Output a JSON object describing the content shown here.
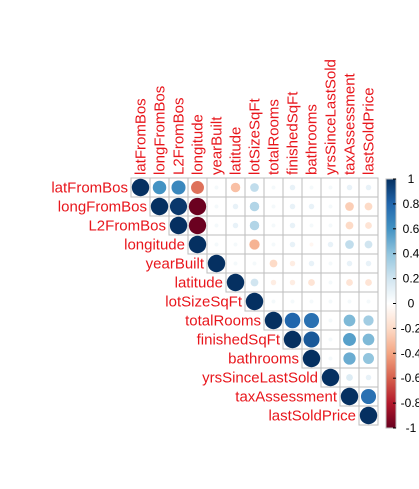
{
  "chart_data": {
    "type": "heatmap",
    "variables": [
      "latFromBos",
      "longFromBos",
      "L2FromBos",
      "longitude",
      "yearBuilt",
      "latitude",
      "lotSizeSqFt",
      "totalRooms",
      "finishedSqFt",
      "bathrooms",
      "yrsSinceLastSold",
      "taxAssessment",
      "lastSoldPrice"
    ],
    "shape": "upper-triangle circles",
    "matrix": [
      [
        1,
        0.6,
        0.65,
        -0.55,
        0.05,
        -0.3,
        0.25,
        0.05,
        0.1,
        0.05,
        0.05,
        0.1,
        0.1
      ],
      [
        null,
        1,
        0.97,
        -0.99,
        0.05,
        0.1,
        0.3,
        0.05,
        0.1,
        0.1,
        0.05,
        -0.25,
        -0.2
      ],
      [
        null,
        null,
        1,
        -0.99,
        0.05,
        0.1,
        0.3,
        0.05,
        0.1,
        0.05,
        0.05,
        -0.2,
        -0.15
      ],
      [
        null,
        null,
        null,
        1,
        0.05,
        0.05,
        -0.35,
        0.05,
        0.1,
        -0.05,
        0.1,
        0.25,
        0.2
      ],
      [
        null,
        null,
        null,
        null,
        1,
        0.05,
        0.05,
        -0.2,
        -0.1,
        0.1,
        0.05,
        0.1,
        0.1
      ],
      [
        null,
        null,
        null,
        null,
        null,
        1,
        0.2,
        -0.1,
        -0.1,
        -0.15,
        0.05,
        -0.15,
        -0.15
      ],
      [
        null,
        null,
        null,
        null,
        null,
        null,
        1,
        0.05,
        0.05,
        0.05,
        0.05,
        0.05,
        0.05
      ],
      [
        null,
        null,
        null,
        null,
        null,
        null,
        null,
        1,
        0.8,
        0.75,
        0.05,
        0.45,
        0.35
      ],
      [
        null,
        null,
        null,
        null,
        null,
        null,
        null,
        null,
        1,
        0.85,
        0.05,
        0.55,
        0.45
      ],
      [
        null,
        null,
        null,
        null,
        null,
        null,
        null,
        null,
        null,
        1,
        0.05,
        0.5,
        0.4
      ],
      [
        null,
        null,
        null,
        null,
        null,
        null,
        null,
        null,
        null,
        null,
        1,
        0.15,
        0.1
      ],
      [
        null,
        null,
        null,
        null,
        null,
        null,
        null,
        null,
        null,
        null,
        null,
        1,
        0.75
      ],
      [
        null,
        null,
        null,
        null,
        null,
        null,
        null,
        null,
        null,
        null,
        null,
        null,
        1
      ]
    ],
    "colorbar_ticks": [
      "1",
      "0.8",
      "0.6",
      "0.4",
      "0.2",
      "0",
      "-0.2",
      "-0.4",
      "-0.6",
      "-0.8",
      "-1"
    ],
    "colorbar_range": [
      -1,
      1
    ],
    "colors": {
      "label": "#e8161c",
      "grid": "#bdbdbd",
      "scale": [
        "#67001f",
        "#b2182b",
        "#d6604d",
        "#f4a582",
        "#fddbc7",
        "#ffffff",
        "#d1e5f0",
        "#92c5de",
        "#4393c3",
        "#2166ac",
        "#053061"
      ]
    }
  }
}
